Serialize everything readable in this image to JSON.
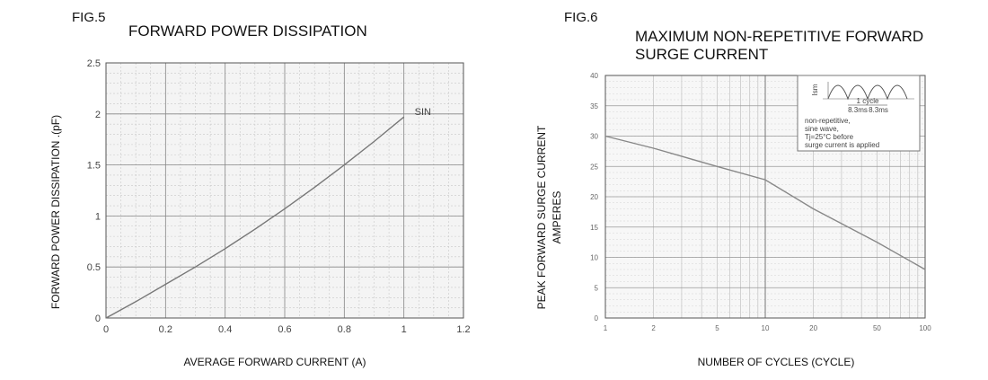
{
  "chart_data": [
    {
      "figure_label": "FIG.5",
      "type": "line",
      "title": "FORWARD POWER DISSIPATION",
      "xlabel": "AVERAGE FORWARD CURRENT (A)",
      "ylabel": "FORWARD POWER DISSIPATION .(pF)",
      "xlim": [
        0,
        1.2
      ],
      "ylim": [
        0,
        2.5
      ],
      "x_scale": "linear",
      "y_scale": "linear",
      "grid": true,
      "x_ticks": [
        0,
        0.2,
        0.4,
        0.6,
        0.8,
        1,
        1.2
      ],
      "x_tick_labels": [
        "0",
        "0.2",
        "0.4",
        "0.6",
        "0.8",
        "1",
        "1.2"
      ],
      "y_ticks": [
        0,
        0.5,
        1,
        1.5,
        2,
        2.5
      ],
      "y_tick_labels": [
        "0",
        "0.5",
        "1",
        "1.5",
        "2",
        "2.5"
      ],
      "series": [
        {
          "name": "SIN",
          "x": [
            0,
            0.1,
            0.2,
            0.3,
            0.4,
            0.5,
            0.6,
            0.7,
            0.8,
            0.9,
            1.0
          ],
          "y": [
            0,
            0.16,
            0.33,
            0.5,
            0.68,
            0.87,
            1.07,
            1.28,
            1.5,
            1.73,
            1.97
          ]
        }
      ]
    },
    {
      "figure_label": "FIG.6",
      "type": "line",
      "title": "MAXIMUM NON-REPETITIVE FORWARD SURGE CURRENT",
      "title_lines": [
        "MAXIMUM NON-REPETITIVE FORWARD",
        "SURGE CURRENT"
      ],
      "xlabel": "NUMBER OF CYCLES (CYCLE)",
      "ylabel": "PEAK FORWARD SURGE CURRENT",
      "ylabel2": "AMPERES",
      "xlim": [
        1,
        100
      ],
      "ylim": [
        0,
        40
      ],
      "x_scale": "log",
      "y_scale": "linear",
      "grid": true,
      "x_ticks": [
        1,
        2,
        5,
        10,
        20,
        50,
        100
      ],
      "x_tick_labels": [
        "1",
        "2",
        "5",
        "10",
        "20",
        "50",
        "100"
      ],
      "y_ticks": [
        0,
        5,
        10,
        15,
        20,
        25,
        30,
        35,
        40
      ],
      "y_tick_labels": [
        "0",
        "5",
        "10",
        "15",
        "20",
        "25",
        "30",
        "35",
        "40"
      ],
      "inset": {
        "labels": [
          "Ism",
          "1 cycle",
          "8.3ms",
          "8.3ms"
        ],
        "notes": [
          "non-repetitive,",
          "sine wave,",
          "Tj=25°C before",
          "surge current is applied"
        ]
      },
      "series": [
        {
          "x": [
            1,
            2,
            5,
            10,
            20,
            50,
            100
          ],
          "y": [
            30,
            28,
            25,
            22.8,
            18,
            12.5,
            8
          ]
        }
      ]
    }
  ]
}
